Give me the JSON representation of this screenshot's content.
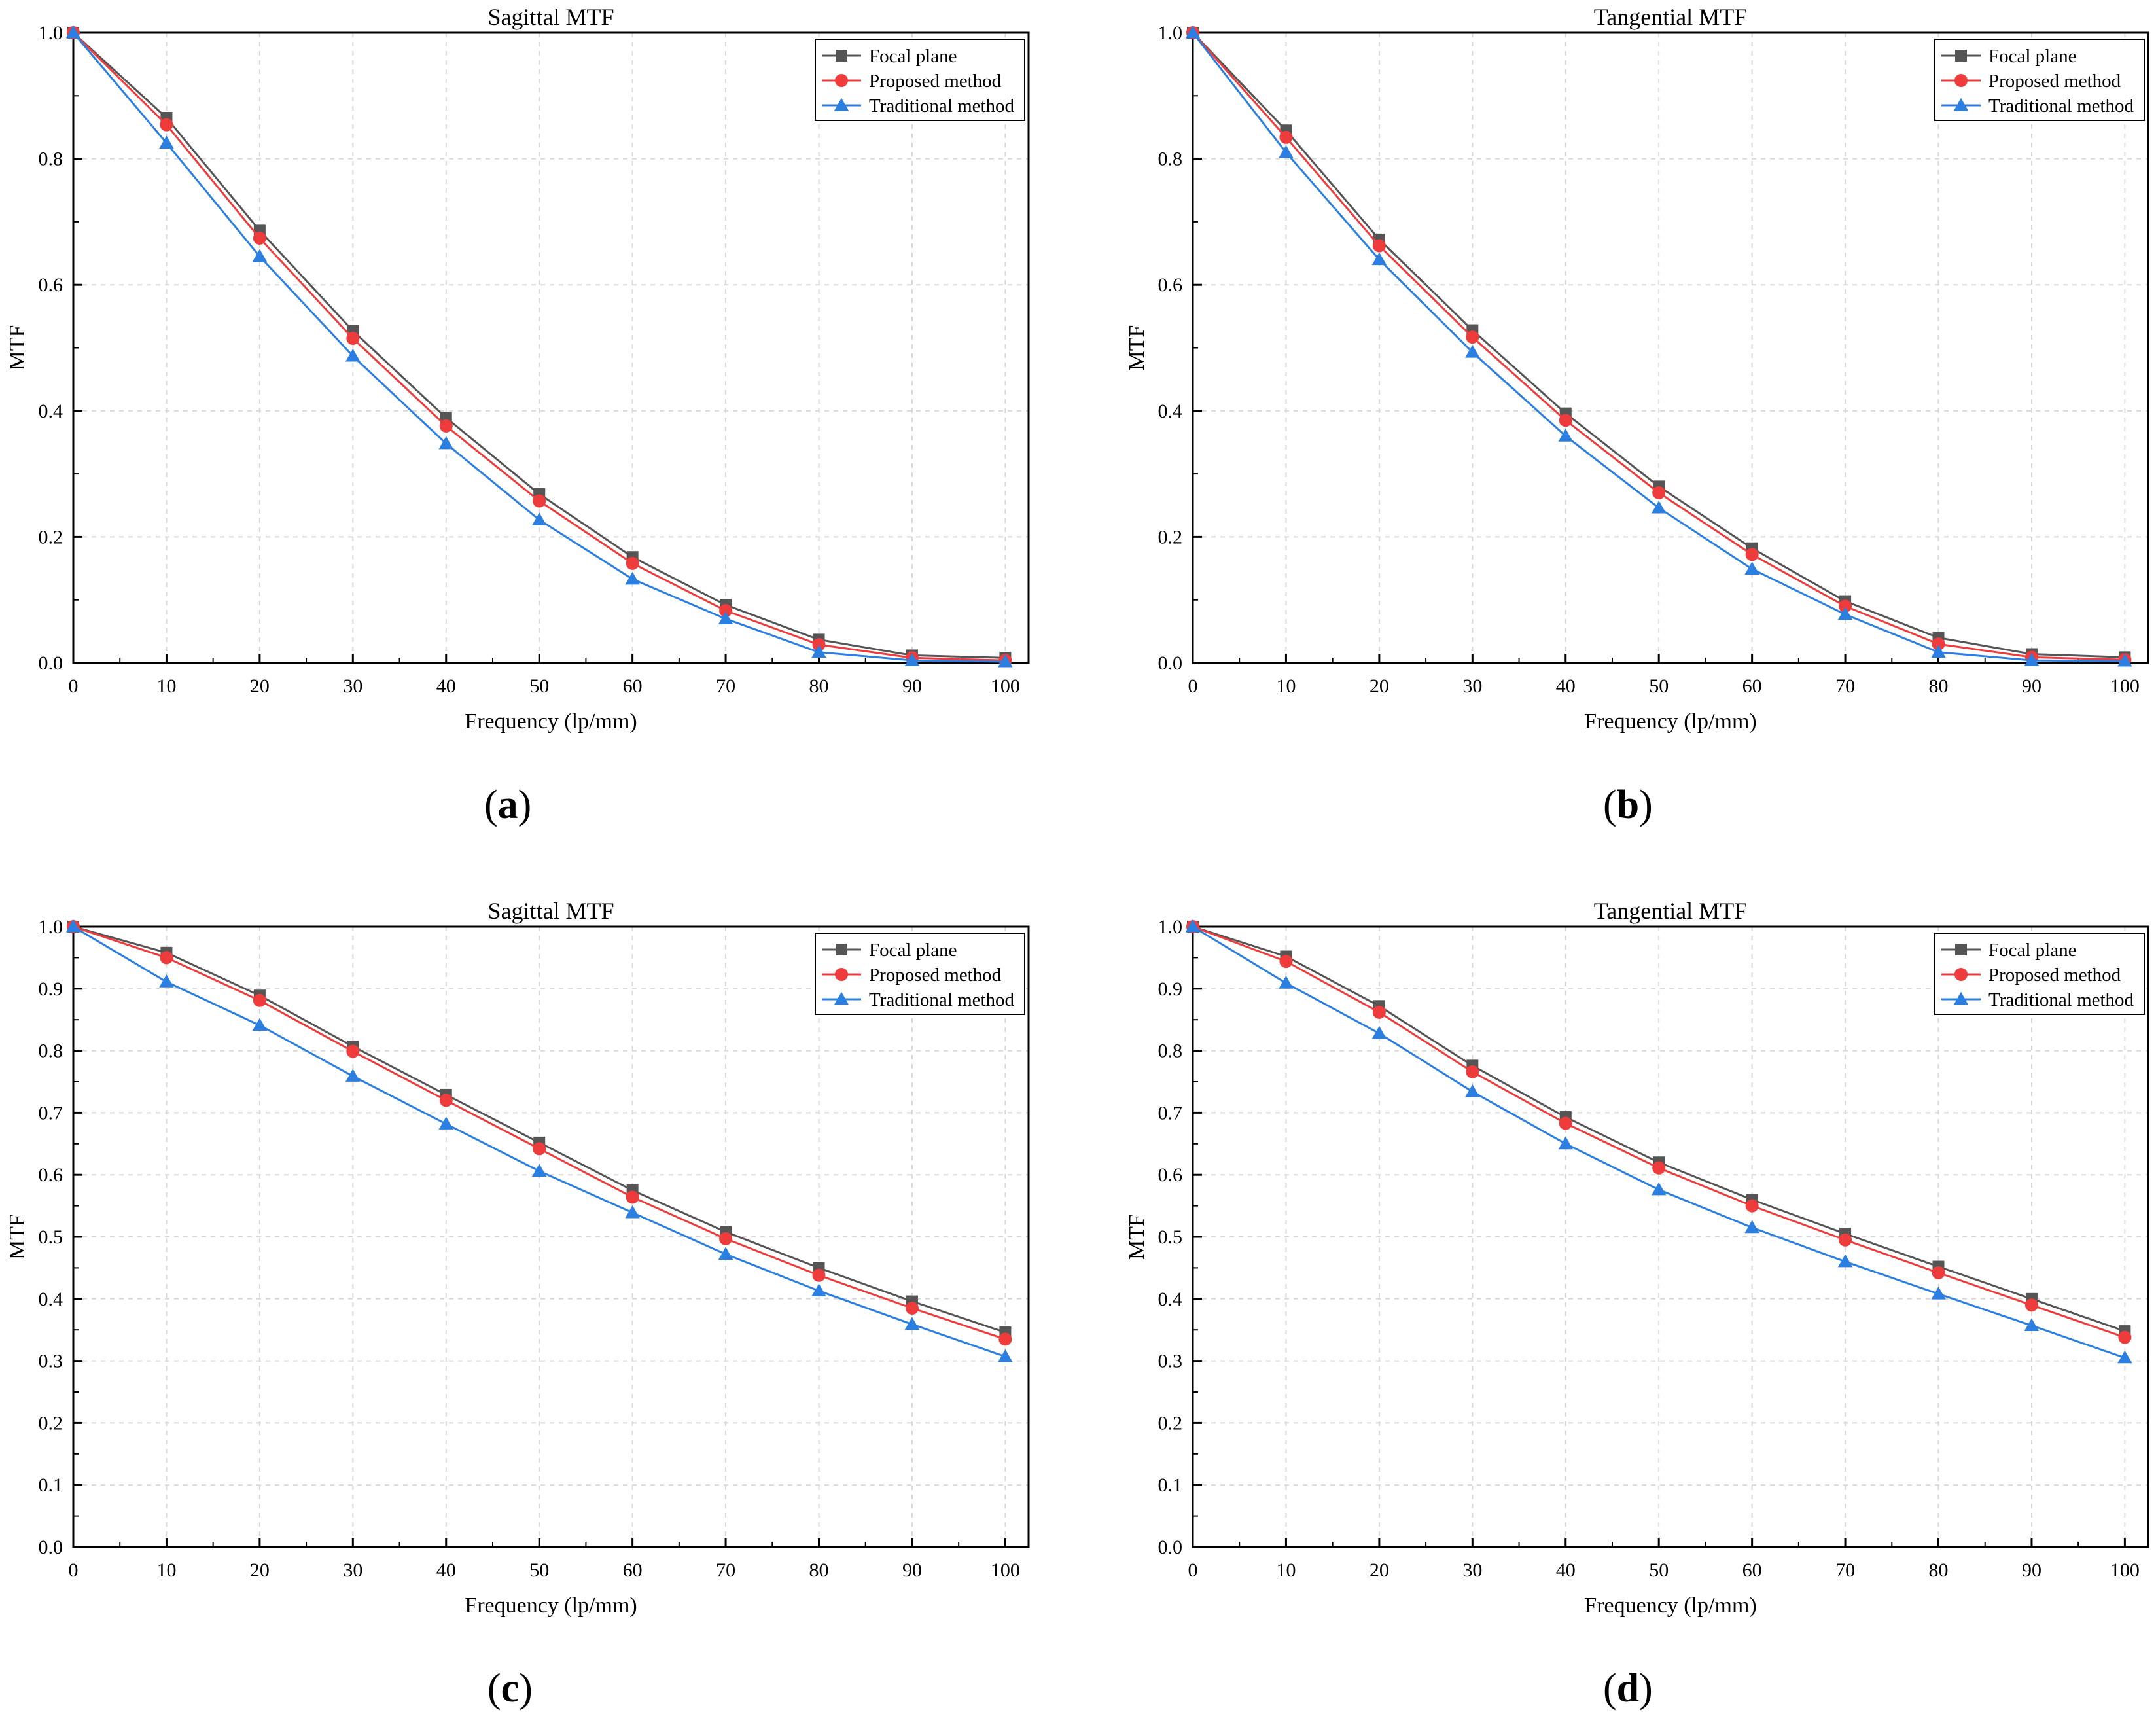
{
  "chart_data": [
    {
      "type": "line",
      "panel_label": "a",
      "title": "Sagittal MTF",
      "xlabel": "Frequency (lp/mm)",
      "ylabel": "MTF",
      "xlim": [
        0,
        102.5
      ],
      "ylim": [
        0,
        1.0
      ],
      "xticks": [
        "0",
        "10",
        "20",
        "30",
        "40",
        "50",
        "60",
        "70",
        "80",
        "90",
        "100"
      ],
      "yticks": [
        "0.0",
        "0.2",
        "0.4",
        "0.6",
        "0.8",
        "1.0"
      ],
      "grid": true,
      "legend_position": "top-right",
      "x": [
        0,
        10,
        20,
        30,
        40,
        50,
        60,
        70,
        80,
        90,
        100
      ],
      "series": [
        {
          "name": "Focal plane",
          "color": "#555555",
          "marker": "square",
          "values": [
            1.0,
            0.865,
            0.686,
            0.527,
            0.389,
            0.268,
            0.168,
            0.092,
            0.037,
            0.012,
            0.008
          ]
        },
        {
          "name": "Proposed method",
          "color": "#ee3b3b",
          "marker": "circle",
          "values": [
            1.0,
            0.854,
            0.674,
            0.515,
            0.376,
            0.257,
            0.158,
            0.083,
            0.029,
            0.008,
            0.004
          ]
        },
        {
          "name": "Traditional method",
          "color": "#2b7fe0",
          "marker": "triangle",
          "values": [
            1.0,
            0.825,
            0.645,
            0.487,
            0.348,
            0.227,
            0.133,
            0.07,
            0.017,
            0.004,
            0.002
          ]
        }
      ]
    },
    {
      "type": "line",
      "panel_label": "b",
      "title": "Tangential MTF",
      "xlabel": "Frequency (lp/mm)",
      "ylabel": "MTF",
      "xlim": [
        0,
        102.5
      ],
      "ylim": [
        0,
        1.0
      ],
      "xticks": [
        "0",
        "10",
        "20",
        "30",
        "40",
        "50",
        "60",
        "70",
        "80",
        "90",
        "100"
      ],
      "yticks": [
        "0.0",
        "0.2",
        "0.4",
        "0.6",
        "0.8",
        "1.0"
      ],
      "grid": true,
      "legend_position": "top-right",
      "x": [
        0,
        10,
        20,
        30,
        40,
        50,
        60,
        70,
        80,
        90,
        100
      ],
      "series": [
        {
          "name": "Focal plane",
          "color": "#555555",
          "marker": "square",
          "values": [
            1.0,
            0.845,
            0.672,
            0.528,
            0.396,
            0.28,
            0.182,
            0.098,
            0.04,
            0.014,
            0.009
          ]
        },
        {
          "name": "Proposed method",
          "color": "#ee3b3b",
          "marker": "circle",
          "values": [
            1.0,
            0.834,
            0.662,
            0.517,
            0.385,
            0.27,
            0.172,
            0.09,
            0.03,
            0.009,
            0.005
          ]
        },
        {
          "name": "Traditional method",
          "color": "#2b7fe0",
          "marker": "triangle",
          "values": [
            1.0,
            0.81,
            0.64,
            0.493,
            0.36,
            0.246,
            0.149,
            0.077,
            0.017,
            0.004,
            0.003
          ]
        }
      ]
    },
    {
      "type": "line",
      "panel_label": "c",
      "title": "Sagittal MTF",
      "xlabel": "Frequency (lp/mm)",
      "ylabel": "MTF",
      "xlim": [
        0,
        102.5
      ],
      "ylim": [
        0,
        1.0
      ],
      "xticks": [
        "0",
        "10",
        "20",
        "30",
        "40",
        "50",
        "60",
        "70",
        "80",
        "90",
        "100"
      ],
      "yticks": [
        "0.0",
        "0.1",
        "0.2",
        "0.3",
        "0.4",
        "0.5",
        "0.6",
        "0.7",
        "0.8",
        "0.9",
        "1.0"
      ],
      "grid": true,
      "legend_position": "top-right",
      "x": [
        0,
        10,
        20,
        30,
        40,
        50,
        60,
        70,
        80,
        90,
        100
      ],
      "series": [
        {
          "name": "Focal plane",
          "color": "#555555",
          "marker": "square",
          "values": [
            1.0,
            0.958,
            0.889,
            0.807,
            0.729,
            0.652,
            0.575,
            0.508,
            0.45,
            0.396,
            0.346
          ]
        },
        {
          "name": "Proposed method",
          "color": "#ee3b3b",
          "marker": "circle",
          "values": [
            1.0,
            0.95,
            0.881,
            0.799,
            0.72,
            0.642,
            0.564,
            0.497,
            0.438,
            0.385,
            0.335
          ]
        },
        {
          "name": "Traditional method",
          "color": "#2b7fe0",
          "marker": "triangle",
          "values": [
            1.0,
            0.911,
            0.841,
            0.759,
            0.682,
            0.606,
            0.539,
            0.472,
            0.413,
            0.359,
            0.307
          ]
        }
      ]
    },
    {
      "type": "line",
      "panel_label": "d",
      "title": "Tangential MTF",
      "xlabel": "Frequency (lp/mm)",
      "ylabel": "MTF",
      "xlim": [
        0,
        102.5
      ],
      "ylim": [
        0,
        1.0
      ],
      "xticks": [
        "0",
        "10",
        "20",
        "30",
        "40",
        "50",
        "60",
        "70",
        "80",
        "90",
        "100"
      ],
      "yticks": [
        "0.0",
        "0.1",
        "0.2",
        "0.3",
        "0.4",
        "0.5",
        "0.6",
        "0.7",
        "0.8",
        "0.9",
        "1.0"
      ],
      "grid": true,
      "legend_position": "top-right",
      "x": [
        0,
        10,
        20,
        30,
        40,
        50,
        60,
        70,
        80,
        90,
        100
      ],
      "series": [
        {
          "name": "Focal plane",
          "color": "#555555",
          "marker": "square",
          "values": [
            1.0,
            0.952,
            0.872,
            0.776,
            0.693,
            0.62,
            0.56,
            0.505,
            0.452,
            0.4,
            0.348
          ]
        },
        {
          "name": "Proposed method",
          "color": "#ee3b3b",
          "marker": "circle",
          "values": [
            1.0,
            0.944,
            0.862,
            0.766,
            0.683,
            0.611,
            0.55,
            0.495,
            0.442,
            0.39,
            0.338
          ]
        },
        {
          "name": "Traditional method",
          "color": "#2b7fe0",
          "marker": "triangle",
          "values": [
            1.0,
            0.909,
            0.828,
            0.734,
            0.65,
            0.576,
            0.515,
            0.46,
            0.408,
            0.357,
            0.305
          ]
        }
      ]
    }
  ]
}
